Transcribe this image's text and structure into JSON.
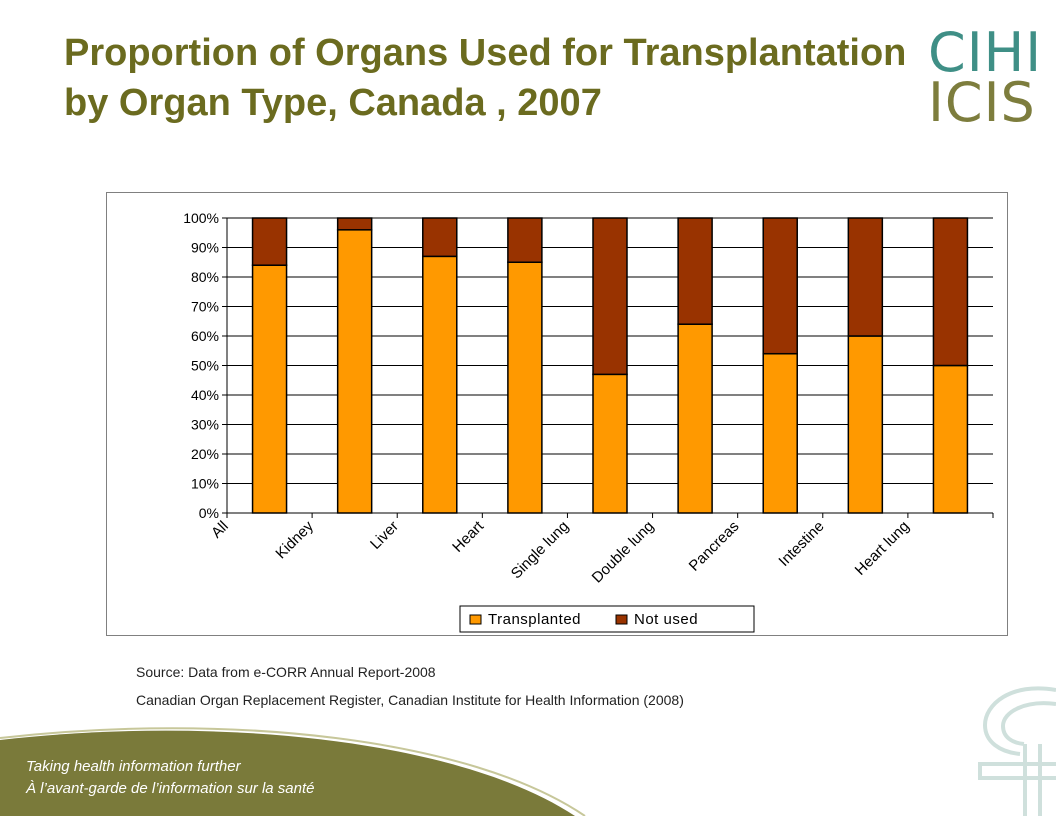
{
  "slide": {
    "title": "Proportion of Organs Used for Transplantation by Organ Type, Canada , 2007",
    "logo_line1": "CIHI",
    "logo_line2": "ICIS",
    "source_line1": "Source: Data from e-CORR Annual Report-2008",
    "source_line2": "Canadian Organ Replacement Register, Canadian Institute for Health Information (2008)",
    "tagline_en": "Taking health information further",
    "tagline_fr": "À l’avant-garde de l’information sur la santé",
    "colors": {
      "title": "#6b6b1f",
      "logo_top": "#3f8f86",
      "logo_bottom": "#7d7d3d",
      "footer_green": "#7a7a3a"
    }
  },
  "chart_data": {
    "type": "bar",
    "stacked": true,
    "categories": [
      "All",
      "Kidney",
      "Liver",
      "Heart",
      "Single lung",
      "Double lung",
      "Pancreas",
      "Intestine",
      "Heart lung"
    ],
    "series": [
      {
        "name": "Transplanted",
        "color": "#ff9900",
        "values": [
          84,
          96,
          87,
          85,
          47,
          64,
          54,
          60,
          50
        ]
      },
      {
        "name": "Not used",
        "color": "#993300",
        "values": [
          16,
          4,
          13,
          15,
          53,
          36,
          46,
          40,
          50
        ]
      }
    ],
    "yticks": [
      "0%",
      "10%",
      "20%",
      "30%",
      "40%",
      "50%",
      "60%",
      "70%",
      "80%",
      "90%",
      "100%"
    ],
    "ylim": [
      0,
      100
    ],
    "grid": true,
    "legend": "bottom"
  }
}
